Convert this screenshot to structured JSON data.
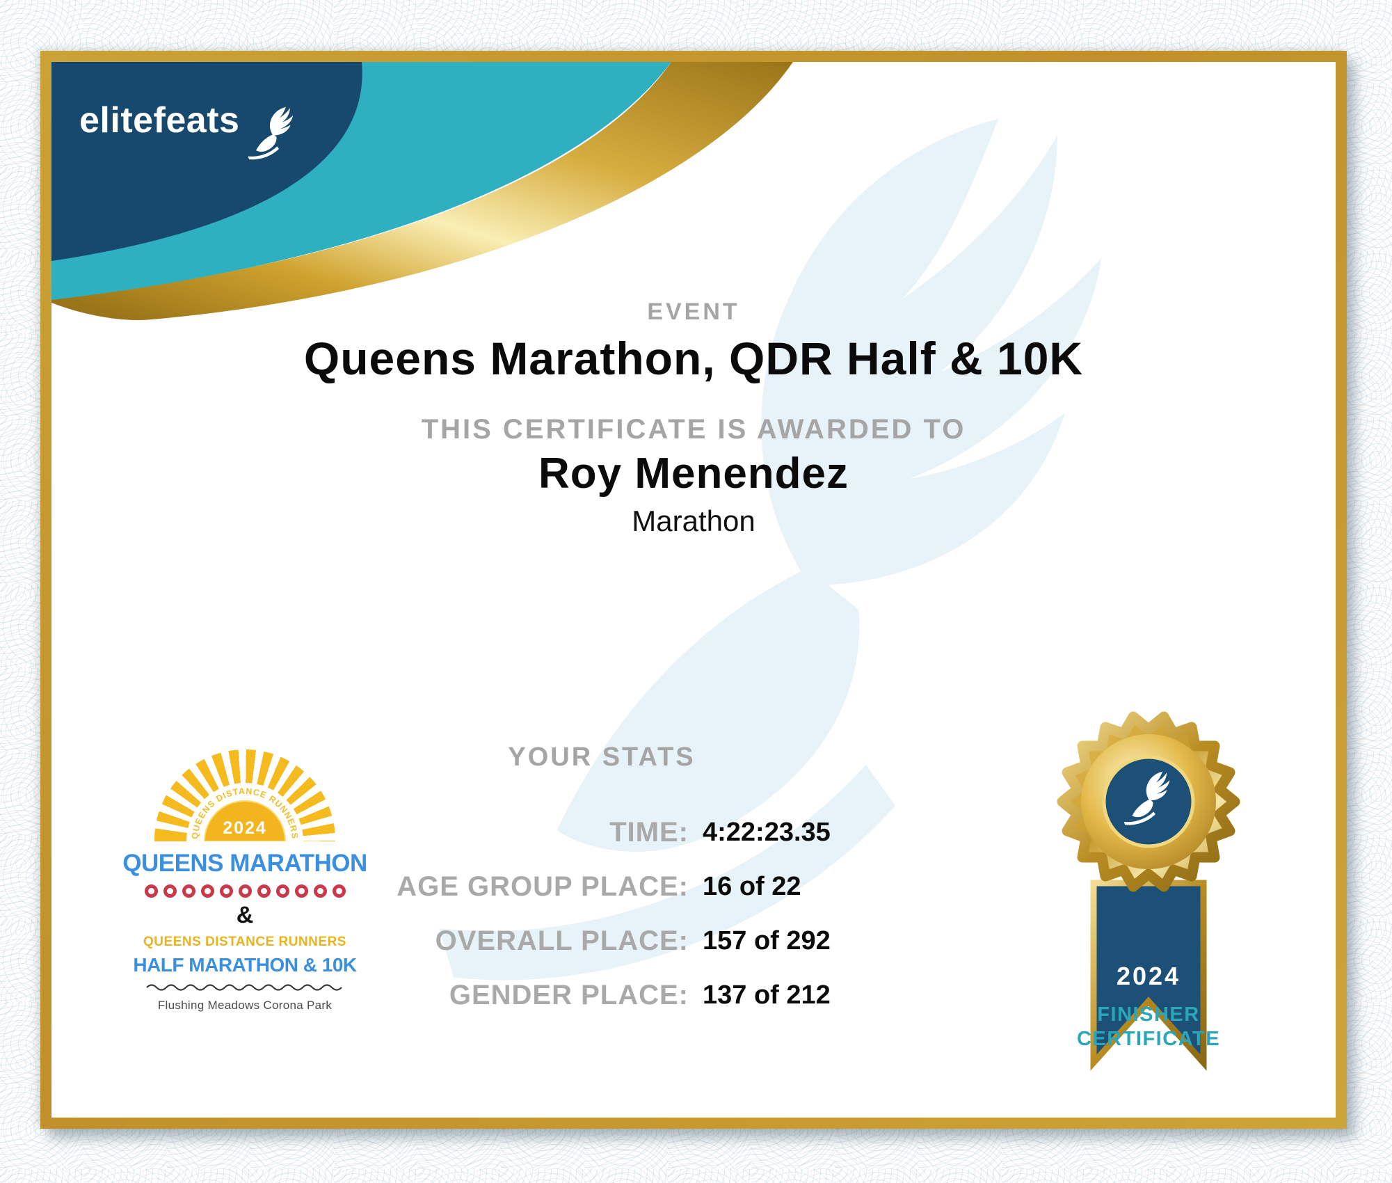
{
  "brand": {
    "name": "elitefeats"
  },
  "event_section": {
    "label": "EVENT",
    "title": "Queens Marathon, QDR Half & 10K"
  },
  "award_section": {
    "label": "THIS CERTIFICATE IS AWARDED TO",
    "recipient": "Roy Menendez",
    "division": "Marathon"
  },
  "stats_section": {
    "heading": "YOUR STATS",
    "rows": [
      {
        "label": "TIME:",
        "value": "4:22:23.35"
      },
      {
        "label": "AGE GROUP PLACE:",
        "value": "16 of 22"
      },
      {
        "label": "OVERALL PLACE:",
        "value": "157 of 292"
      },
      {
        "label": "GENDER PLACE:",
        "value": "137 of 212"
      }
    ]
  },
  "queens_logo": {
    "arc_text": "QUEENS DISTANCE RUNNERS",
    "year": "2024",
    "name": "QUEENS MARATHON",
    "ampersand": "&",
    "club": "QUEENS DISTANCE RUNNERS",
    "race": "HALF MARATHON & 10K",
    "venue": "Flushing Meadows Corona Park",
    "dots_count": 11
  },
  "medal": {
    "year": "2024",
    "caption_line1": "FINISHER",
    "caption_line2": "CERTIFICATE"
  },
  "colors": {
    "navy": "#17496F",
    "teal": "#2FB0C1",
    "frame_gold": "#C6992E",
    "heading_gray": "#A5A5A5",
    "text_black": "#0B0B0B",
    "queens_blue": "#3A8FDE",
    "queens_yellow": "#F4BA1E",
    "queens_red": "#C9394A",
    "finisher_teal": "#2BA6B8",
    "watermark_blue": "#E7F3F8"
  }
}
